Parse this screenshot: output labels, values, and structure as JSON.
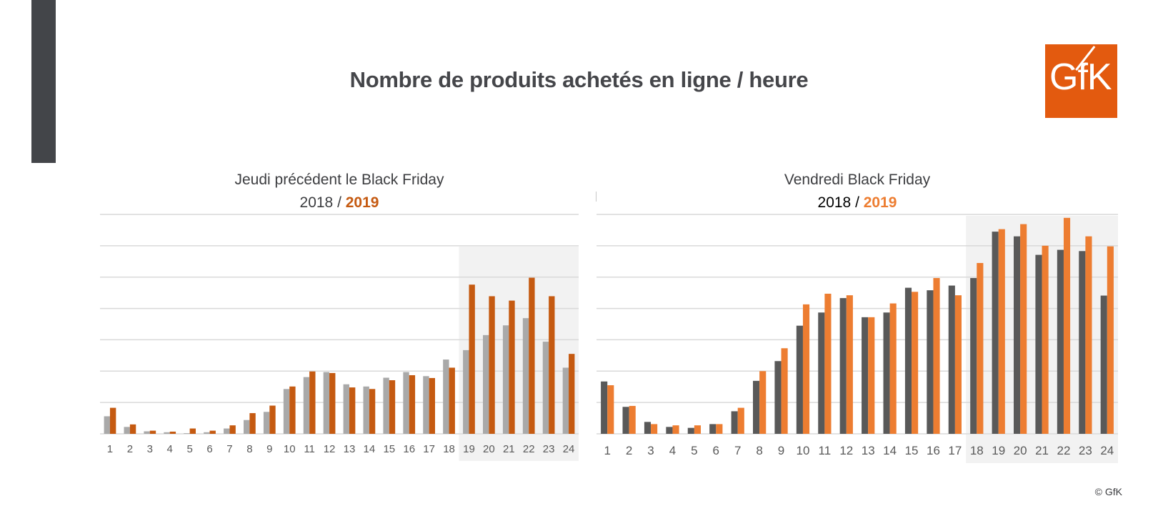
{
  "title": "Nombre de produits achetés en ligne / heure",
  "logo_text": "GfK",
  "copyright": "© GfK",
  "colors": {
    "sidebar": "#434549",
    "brand_orange": "#e35a0f",
    "left_2018": "#a9a9a9",
    "left_2019": "#c55a11",
    "right_2018": "#595959",
    "right_2019": "#ed7d31",
    "highlight_bg": "#f2f2f2",
    "gridline": "#d9d9d9"
  },
  "charts": [
    {
      "subtitle": "Jeudi précédent le Black Friday",
      "year_a": "2018",
      "separator": " / ",
      "year_b": "2019",
      "year_b_color": "#c55a11"
    },
    {
      "subtitle": "Vendredi Black Friday",
      "year_a": "2018",
      "separator": " / ",
      "year_b": "2019",
      "year_b_color": "#ed7d31"
    }
  ],
  "chart_data": [
    {
      "type": "bar",
      "title": "Jeudi précédent le Black Friday",
      "categories": [
        "1",
        "2",
        "3",
        "4",
        "5",
        "6",
        "7",
        "8",
        "9",
        "10",
        "11",
        "12",
        "13",
        "14",
        "15",
        "16",
        "17",
        "18",
        "19",
        "20",
        "21",
        "22",
        "23",
        "24"
      ],
      "series": [
        {
          "name": "2018",
          "color": "#a9a9a9",
          "values": [
            0.56,
            0.22,
            0.08,
            0.05,
            0.02,
            0.05,
            0.17,
            0.44,
            0.7,
            1.43,
            1.81,
            1.97,
            1.58,
            1.51,
            1.79,
            1.97,
            1.84,
            2.37,
            2.67,
            3.15,
            3.46,
            3.69,
            2.94,
            2.11
          ]
        },
        {
          "name": "2019",
          "color": "#c55a11",
          "values": [
            0.83,
            0.3,
            0.1,
            0.07,
            0.17,
            0.1,
            0.27,
            0.66,
            0.9,
            1.51,
            1.99,
            1.94,
            1.48,
            1.43,
            1.71,
            1.87,
            1.78,
            2.11,
            4.76,
            4.39,
            4.25,
            4.98,
            4.39,
            2.55
          ]
        }
      ],
      "ylim": [
        0,
        7
      ],
      "grid": true,
      "highlight_from_category": "19"
    },
    {
      "type": "bar",
      "title": "Vendredi Black Friday",
      "categories": [
        "1",
        "2",
        "3",
        "4",
        "5",
        "6",
        "7",
        "8",
        "9",
        "10",
        "11",
        "12",
        "13",
        "14",
        "15",
        "16",
        "17",
        "18",
        "19",
        "20",
        "21",
        "22",
        "23",
        "24"
      ],
      "series": [
        {
          "name": "2018",
          "color": "#595959",
          "values": [
            1.67,
            0.86,
            0.38,
            0.22,
            0.19,
            0.31,
            0.72,
            1.69,
            2.32,
            3.45,
            3.87,
            4.33,
            3.72,
            3.87,
            4.66,
            4.58,
            4.73,
            4.97,
            6.45,
            6.3,
            5.71,
            5.87,
            5.83,
            4.41
          ]
        },
        {
          "name": "2019",
          "color": "#ed7d31",
          "values": [
            1.55,
            0.89,
            0.31,
            0.27,
            0.27,
            0.31,
            0.83,
            2.0,
            2.73,
            4.13,
            4.47,
            4.42,
            3.72,
            4.16,
            4.53,
            4.97,
            4.42,
            5.45,
            6.53,
            6.69,
            6.0,
            6.89,
            6.3,
            5.98
          ]
        }
      ],
      "ylim": [
        0,
        7
      ],
      "grid": true,
      "highlight_from_category": "18"
    }
  ]
}
